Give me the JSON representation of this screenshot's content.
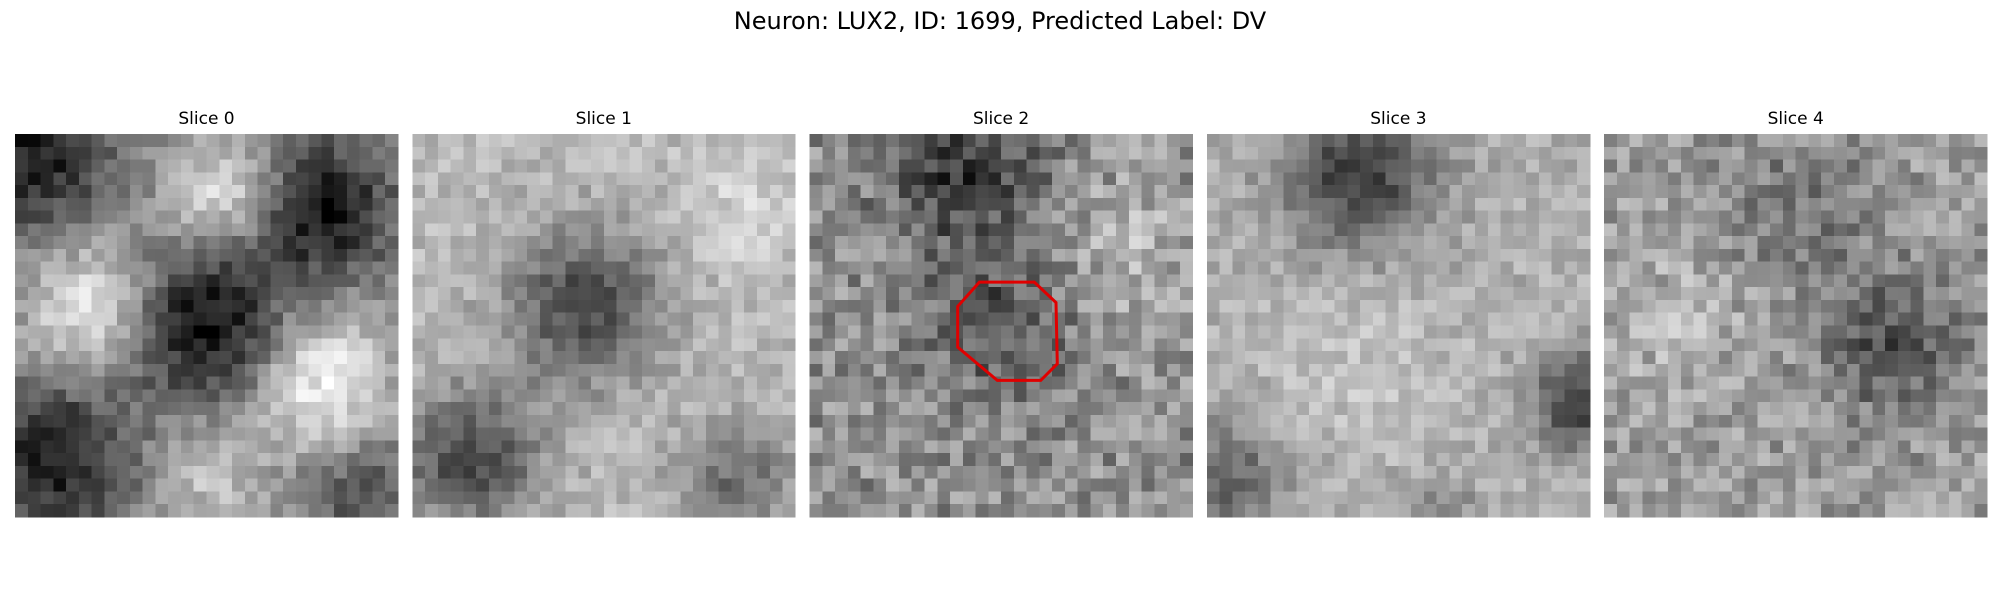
{
  "title": "Neuron: LUX2, ID: 1699, Predicted Label: DV",
  "panels": [
    {
      "title": "Slice 0"
    },
    {
      "title": "Slice 1"
    },
    {
      "title": "Slice 2"
    },
    {
      "title": "Slice 3"
    },
    {
      "title": "Slice 4"
    }
  ]
}
